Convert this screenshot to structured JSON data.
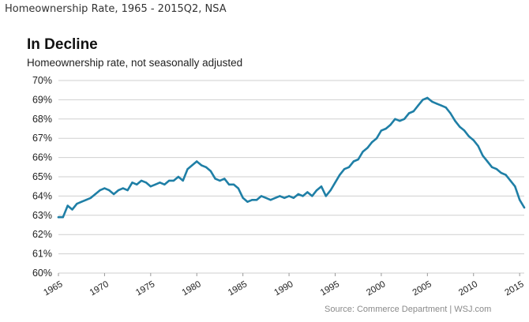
{
  "page_title": "Homeownership Rate, 1965 - 2015Q2, NSA",
  "source_note": "Source: Commerce Department  |  WSJ.com",
  "colors": {
    "line": "#1f7fa6",
    "grid": "#cfcfcf",
    "text": "#222222"
  },
  "chart_data": {
    "type": "line",
    "title": "In Decline",
    "subtitle": "Homeownership rate, not seasonally adjusted",
    "xlabel": "",
    "ylabel": "",
    "xlim": [
      1965,
      2015.5
    ],
    "ylim": [
      60,
      70
    ],
    "y_ticks": [
      "70%",
      "69%",
      "68%",
      "67%",
      "66%",
      "65%",
      "64%",
      "63%",
      "62%",
      "61%",
      "60%"
    ],
    "x_ticks": [
      "1965",
      "1970",
      "1975",
      "1980",
      "1985",
      "1990",
      "1995",
      "2000",
      "2005",
      "2010",
      "2015"
    ],
    "grid": "horizontal",
    "series": [
      {
        "x": [
          1965.0,
          1965.5,
          1966.0,
          1966.5,
          1967.0,
          1967.5,
          1968.0,
          1968.5,
          1969.0,
          1969.5,
          1970.0,
          1970.5,
          1971.0,
          1971.5,
          1972.0,
          1972.5,
          1973.0,
          1973.5,
          1974.0,
          1974.5,
          1975.0,
          1975.5,
          1976.0,
          1976.5,
          1977.0,
          1977.5,
          1978.0,
          1978.5,
          1979.0,
          1979.5,
          1980.0,
          1980.5,
          1981.0,
          1981.5,
          1982.0,
          1982.5,
          1983.0,
          1983.5,
          1984.0,
          1984.5,
          1985.0,
          1985.5,
          1986.0,
          1986.5,
          1987.0,
          1987.5,
          1988.0,
          1988.5,
          1989.0,
          1989.5,
          1990.0,
          1990.5,
          1991.0,
          1991.5,
          1992.0,
          1992.5,
          1993.0,
          1993.5,
          1994.0,
          1994.5,
          1995.0,
          1995.5,
          1996.0,
          1996.5,
          1997.0,
          1997.5,
          1998.0,
          1998.5,
          1999.0,
          1999.5,
          2000.0,
          2000.5,
          2001.0,
          2001.5,
          2002.0,
          2002.5,
          2003.0,
          2003.5,
          2004.0,
          2004.5,
          2005.0,
          2005.5,
          2006.0,
          2006.5,
          2007.0,
          2007.5,
          2008.0,
          2008.5,
          2009.0,
          2009.5,
          2010.0,
          2010.5,
          2011.0,
          2011.5,
          2012.0,
          2012.5,
          2013.0,
          2013.5,
          2014.0,
          2014.5,
          2015.0,
          2015.5
        ],
        "values": [
          62.9,
          62.9,
          63.5,
          63.3,
          63.6,
          63.7,
          63.8,
          63.9,
          64.1,
          64.3,
          64.4,
          64.3,
          64.1,
          64.3,
          64.4,
          64.3,
          64.7,
          64.6,
          64.8,
          64.7,
          64.5,
          64.6,
          64.7,
          64.6,
          64.8,
          64.8,
          65.0,
          64.8,
          65.4,
          65.6,
          65.8,
          65.6,
          65.5,
          65.3,
          64.9,
          64.8,
          64.9,
          64.6,
          64.6,
          64.4,
          63.9,
          63.7,
          63.8,
          63.8,
          64.0,
          63.9,
          63.8,
          63.9,
          64.0,
          63.9,
          64.0,
          63.9,
          64.1,
          64.0,
          64.2,
          64.0,
          64.3,
          64.5,
          64.0,
          64.3,
          64.7,
          65.1,
          65.4,
          65.5,
          65.8,
          65.9,
          66.3,
          66.5,
          66.8,
          67.0,
          67.4,
          67.5,
          67.7,
          68.0,
          67.9,
          68.0,
          68.3,
          68.4,
          68.7,
          69.0,
          69.1,
          68.9,
          68.8,
          68.7,
          68.6,
          68.3,
          67.9,
          67.6,
          67.4,
          67.1,
          66.9,
          66.6,
          66.1,
          65.8,
          65.5,
          65.4,
          65.2,
          65.1,
          64.8,
          64.5,
          63.8,
          63.4
        ]
      }
    ]
  }
}
